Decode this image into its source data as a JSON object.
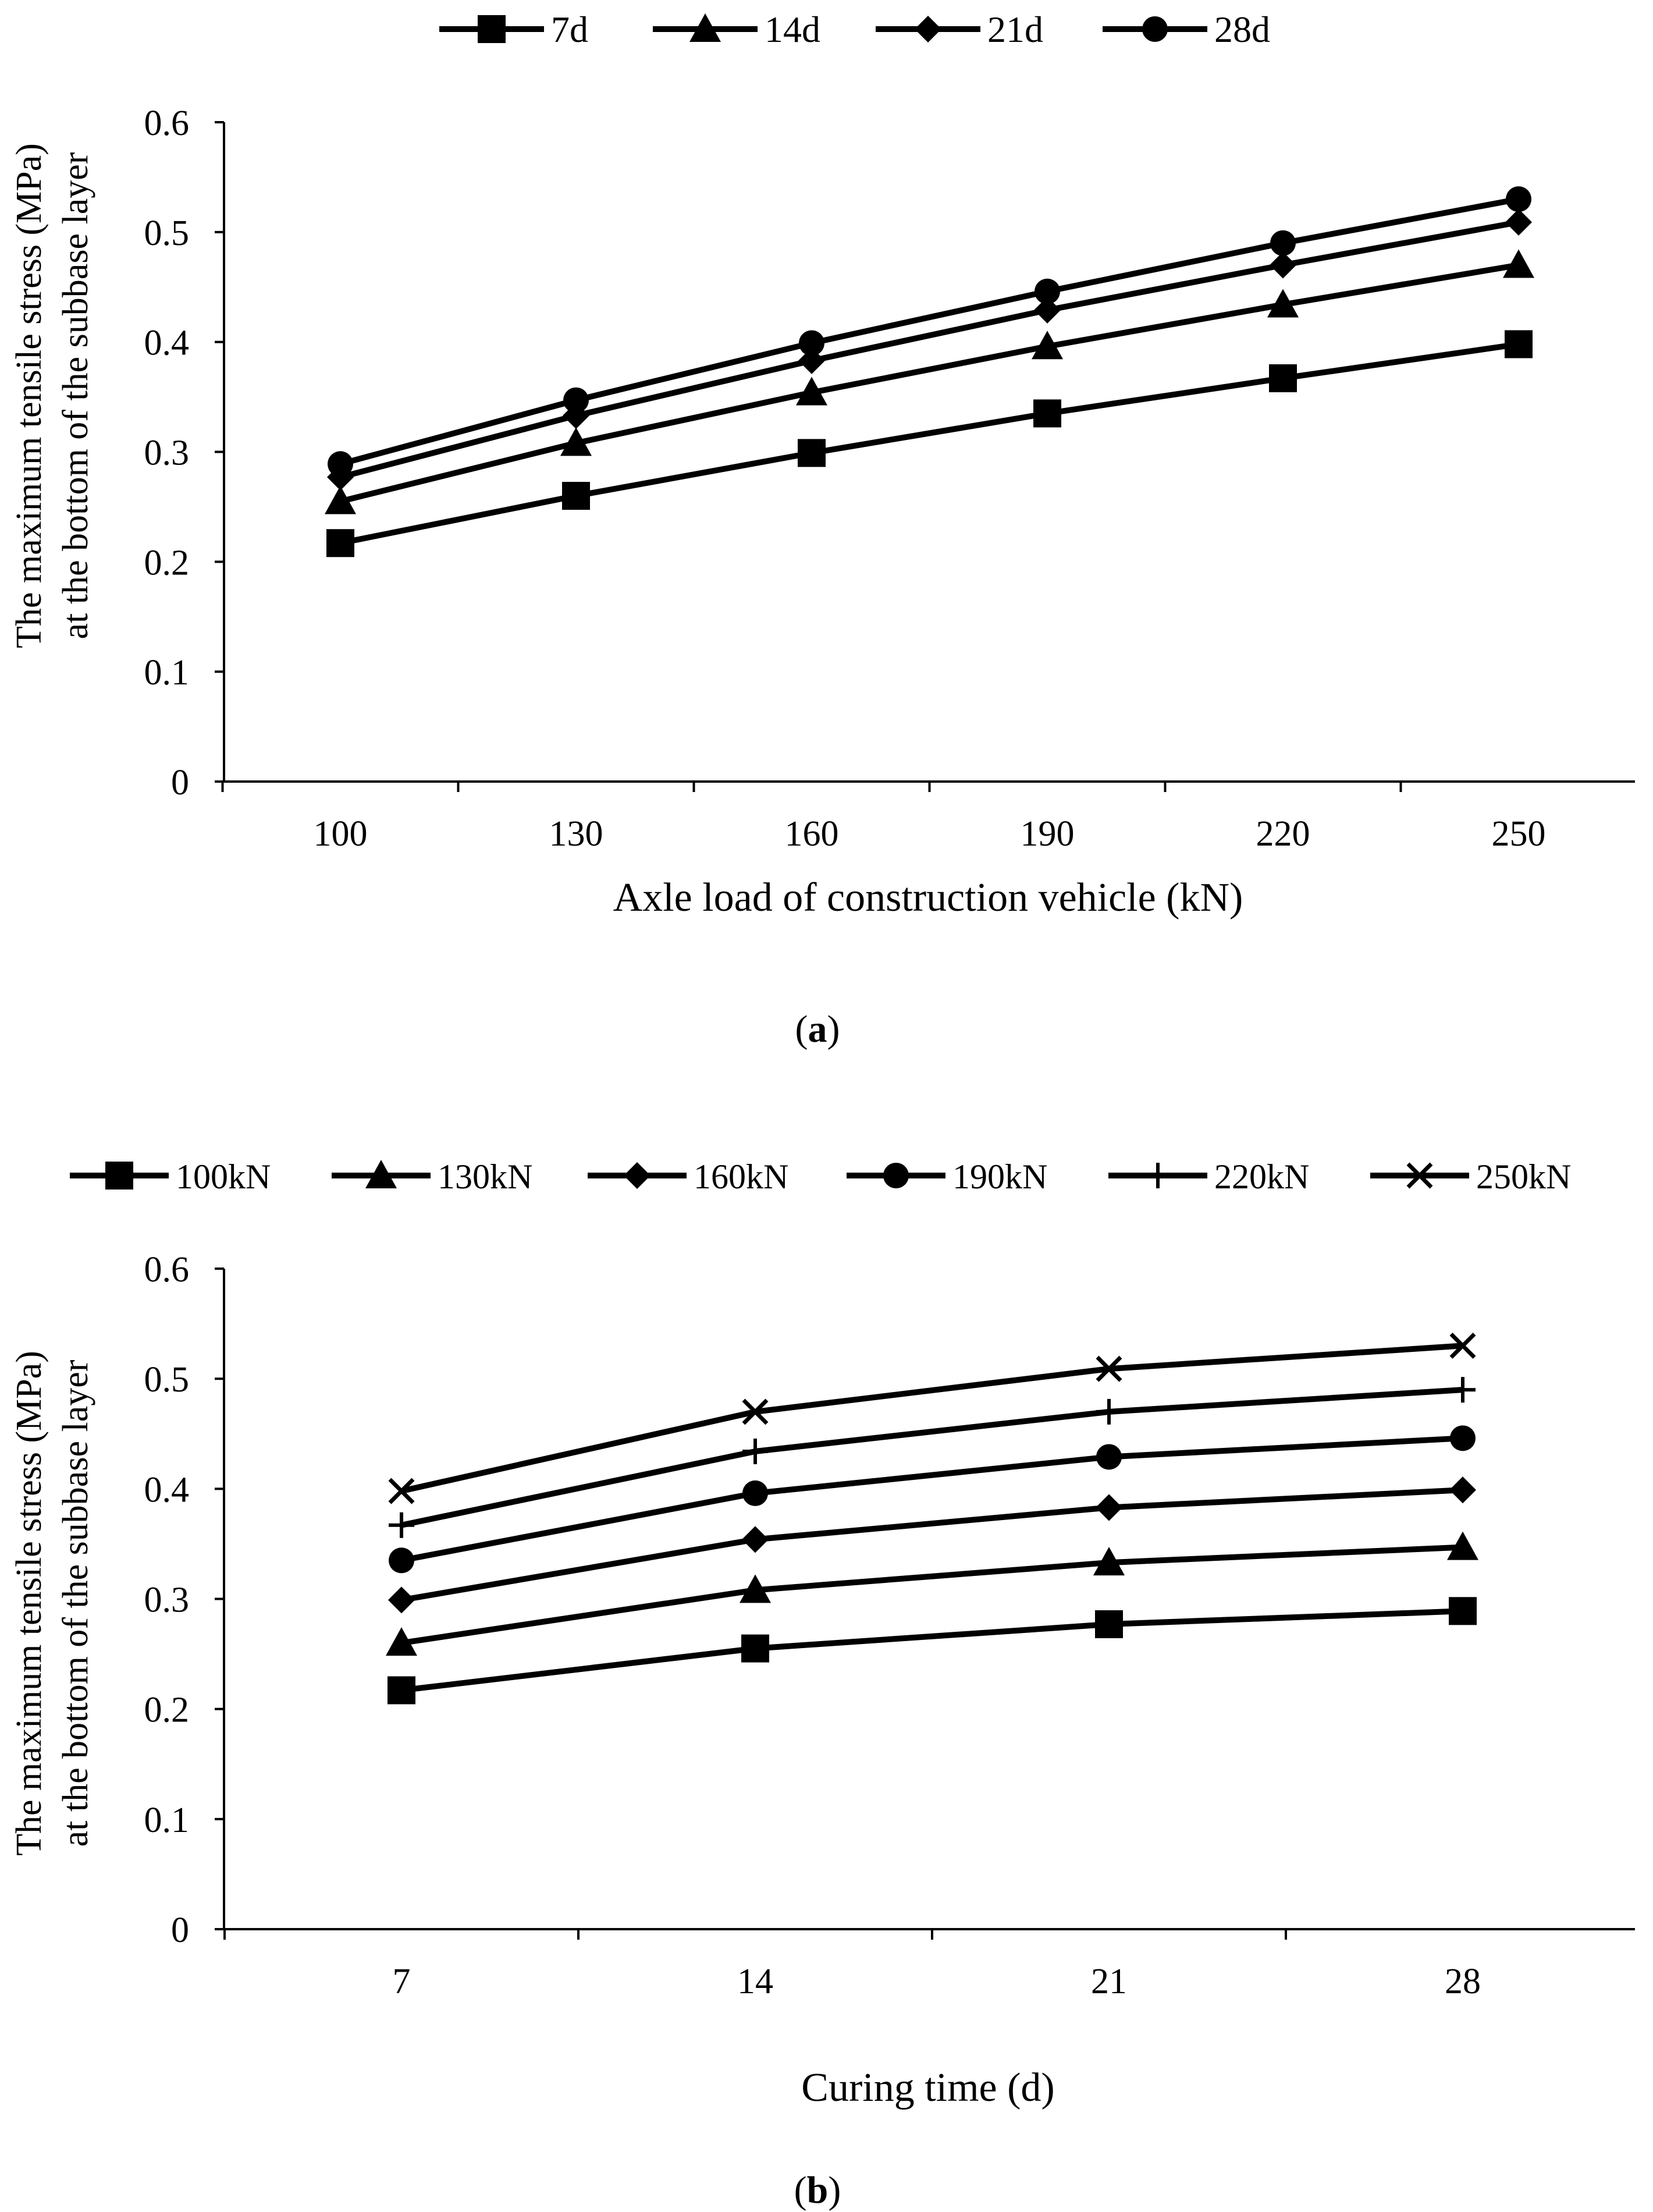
{
  "chart_data": [
    {
      "type": "line",
      "panel_label": "(a)",
      "panel_letter": "a",
      "xlabel": "Axle load of construction vehicle (kN)",
      "ylabel_line1": "The maximum tensile stress (MPa)",
      "ylabel_line2": "at the bottom of the subbase layer",
      "categories": [
        "100",
        "130",
        "160",
        "190",
        "220",
        "250"
      ],
      "ylim": [
        0,
        0.6
      ],
      "yticks": [
        "0",
        "0.1",
        "0.2",
        "0.3",
        "0.4",
        "0.5",
        "0.6"
      ],
      "legend_position": "top",
      "series": [
        {
          "name": "7d",
          "marker": "square",
          "values": [
            0.217,
            0.26,
            0.299,
            0.335,
            0.367,
            0.398
          ]
        },
        {
          "name": "14d",
          "marker": "triangle",
          "values": [
            0.255,
            0.308,
            0.354,
            0.396,
            0.434,
            0.47
          ]
        },
        {
          "name": "21d",
          "marker": "diamond",
          "values": [
            0.277,
            0.333,
            0.383,
            0.429,
            0.47,
            0.509
          ]
        },
        {
          "name": "28d",
          "marker": "circle",
          "values": [
            0.289,
            0.347,
            0.399,
            0.446,
            0.49,
            0.53
          ]
        }
      ]
    },
    {
      "type": "line",
      "panel_label": "(b)",
      "panel_letter": "b",
      "xlabel": "Curing time (d)",
      "ylabel_line1": "The maximum tensile stress (MPa)",
      "ylabel_line2": "at the bottom of the subbase layer",
      "categories": [
        "7",
        "14",
        "21",
        "28"
      ],
      "ylim": [
        0,
        0.6
      ],
      "yticks": [
        "0",
        "0.1",
        "0.2",
        "0.3",
        "0.4",
        "0.5",
        "0.6"
      ],
      "legend_position": "top",
      "series": [
        {
          "name": "100kN",
          "marker": "square",
          "values": [
            0.217,
            0.255,
            0.277,
            0.289
          ]
        },
        {
          "name": "130kN",
          "marker": "triangle",
          "values": [
            0.26,
            0.308,
            0.333,
            0.347
          ]
        },
        {
          "name": "160kN",
          "marker": "diamond",
          "values": [
            0.299,
            0.354,
            0.383,
            0.399
          ]
        },
        {
          "name": "190kN",
          "marker": "circle",
          "values": [
            0.335,
            0.396,
            0.429,
            0.446
          ]
        },
        {
          "name": "220kN",
          "marker": "plus",
          "values": [
            0.367,
            0.434,
            0.47,
            0.49
          ]
        },
        {
          "name": "250kN",
          "marker": "cross",
          "values": [
            0.398,
            0.47,
            0.509,
            0.53
          ]
        }
      ]
    }
  ]
}
